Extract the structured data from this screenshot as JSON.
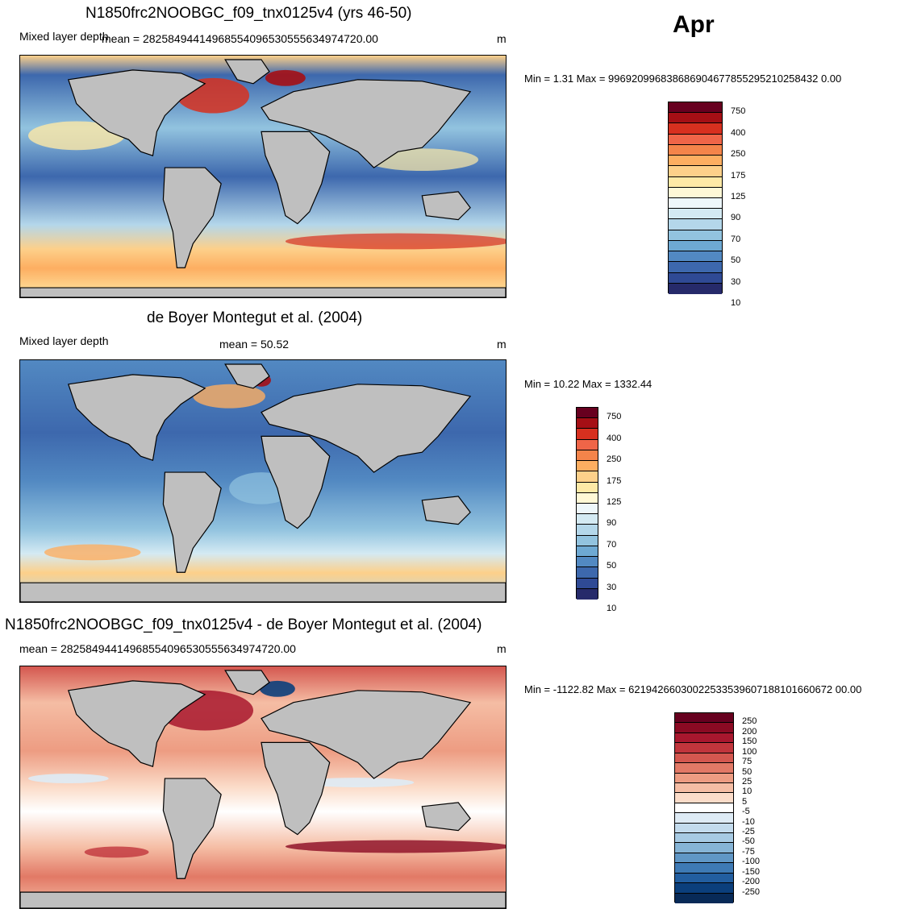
{
  "month": "Apr",
  "panels": [
    {
      "title": "N1850frc2NOOBGC_f09_tnx0125v4 (yrs 46-50)",
      "variable": "Mixed layer depth",
      "mean": "mean = 28258494414968554096530555634974720.00",
      "units": "m",
      "minmax": "Min =   1.31 Max = 996920996838686904677855295210258432 0.00"
    },
    {
      "title": "de Boyer Montegut et al. (2004)",
      "variable": "Mixed layer depth",
      "mean": "mean =  50.52",
      "units": "m",
      "minmax": "Min =  10.22 Max = 1332.44"
    },
    {
      "title": "N1850frc2NOOBGC_f09_tnx0125v4 - de Boyer Montegut et al. (2004)",
      "variable": "",
      "mean": "mean = 28258494414968554096530555634974720.00",
      "units": "m",
      "minmax": "Min = -1122.82 Max = 62194266030022533539607188101660672 00.00"
    }
  ],
  "colorbar_mld": {
    "labels": [
      "750",
      "400",
      "250",
      "175",
      "125",
      "90",
      "70",
      "50",
      "30",
      "10"
    ],
    "colors": [
      "#67001f",
      "#a50f15",
      "#d7301f",
      "#ef6548",
      "#f4844a",
      "#fdae61",
      "#fdd08a",
      "#fee9a6",
      "#fff8d6",
      "#eef7fb",
      "#d4eaf3",
      "#b4d7ea",
      "#92c3df",
      "#6ea9d3",
      "#5289c2",
      "#3d68ad",
      "#2f4a95",
      "#262a6a"
    ]
  },
  "colorbar_diff": {
    "labels": [
      "250",
      "200",
      "150",
      "100",
      "75",
      "50",
      "25",
      "10",
      "5",
      "-5",
      "-10",
      "-25",
      "-50",
      "-75",
      "-100",
      "-150",
      "-200",
      "-250"
    ],
    "colors": [
      "#67001f",
      "#8b0a23",
      "#a8172e",
      "#c1353c",
      "#d4574f",
      "#e27966",
      "#ed9c82",
      "#f5bda4",
      "#fbdcc9",
      "#ffffff",
      "#deebf5",
      "#c3dbed",
      "#a7cae3",
      "#86b4d6",
      "#6097c6",
      "#3e7ab5",
      "#225ea0",
      "#0b3f7c",
      "#082a57"
    ]
  },
  "colors": {
    "land": "#bfbfbf",
    "coast": "#000000"
  }
}
